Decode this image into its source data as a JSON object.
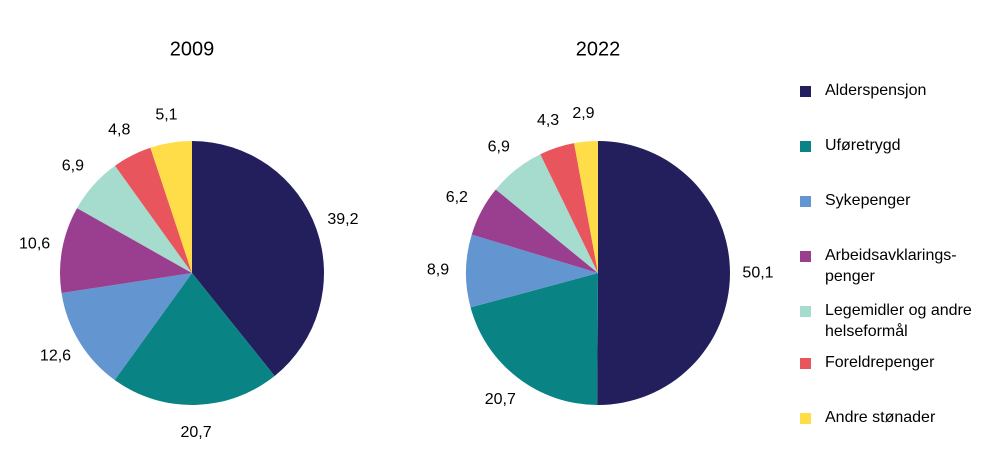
{
  "legend": {
    "labels": [
      "Alderspensjon",
      "Uføretrygd",
      "Sykepenger",
      "Arbeidsavklarings-penger",
      "Legemidler og andre helseformål",
      "Foreldrepenger",
      "Andre stønader"
    ],
    "colors": [
      "#221f5c",
      "#0a8385",
      "#6395d0",
      "#9a3f8f",
      "#a5dccd",
      "#e8555c",
      "#fedd48"
    ]
  },
  "chart_data": [
    {
      "type": "pie",
      "title": "2009",
      "values": [
        39.2,
        20.7,
        12.6,
        10.6,
        6.9,
        4.8,
        5.1
      ],
      "value_labels": [
        "39,2",
        "20,7",
        "12,6",
        "10,6",
        "6,9",
        "4,8",
        "5,1"
      ]
    },
    {
      "type": "pie",
      "title": "2022",
      "values": [
        50.1,
        20.7,
        8.9,
        6.2,
        6.9,
        4.3,
        2.9
      ],
      "value_labels": [
        "50,1",
        "20,7",
        "8,9",
        "6,2",
        "6,9",
        "4,3",
        "2,9"
      ]
    }
  ]
}
